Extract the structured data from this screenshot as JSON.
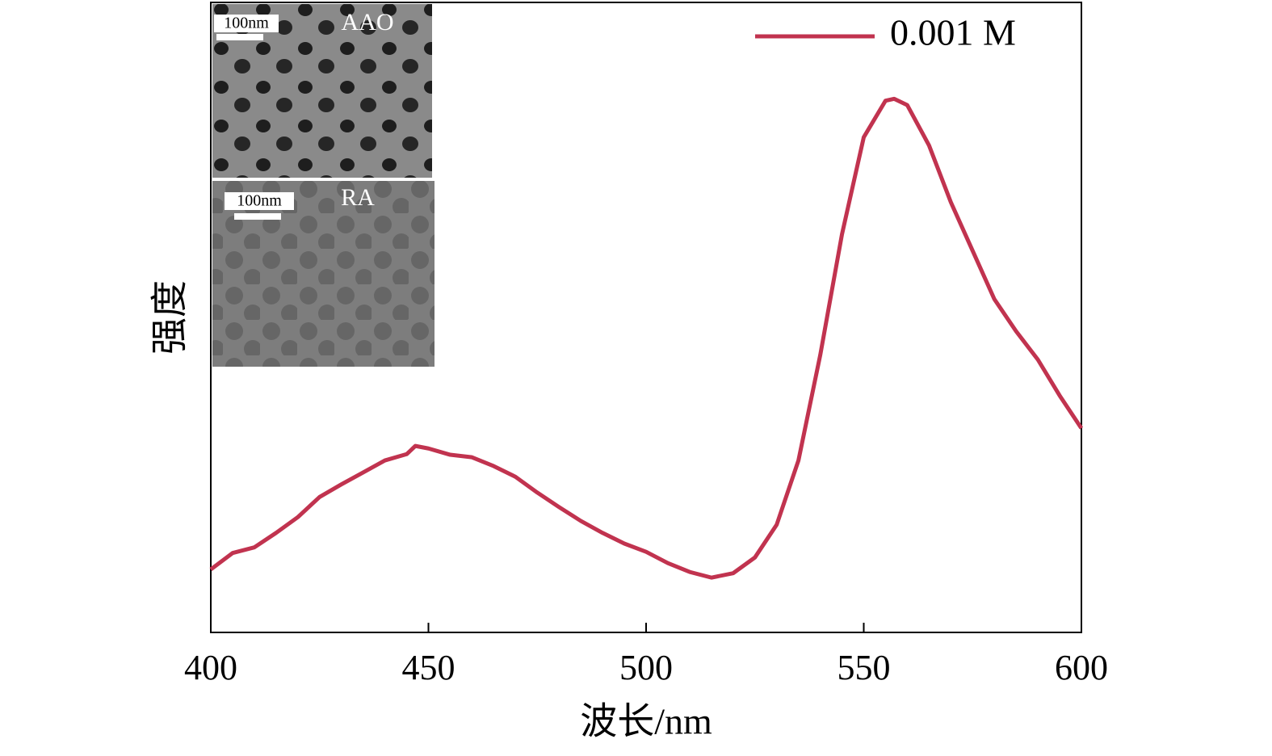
{
  "chart_data": {
    "type": "line",
    "x_label": "波长/nm",
    "y_label": "强度",
    "xlim": [
      400,
      600
    ],
    "xticks": [
      400,
      450,
      500,
      550,
      600
    ],
    "ylim": [
      0,
      100
    ],
    "legend": "upper right",
    "x": [
      400,
      405,
      410,
      415,
      420,
      425,
      430,
      435,
      440,
      445,
      447,
      450,
      455,
      460,
      465,
      470,
      475,
      480,
      485,
      490,
      495,
      500,
      505,
      510,
      515,
      520,
      525,
      530,
      535,
      540,
      545,
      550,
      555,
      557,
      560,
      565,
      570,
      575,
      580,
      585,
      590,
      595,
      600
    ],
    "series": [
      {
        "name": "0.001 M",
        "color": "#c1334f",
        "values": [
          10.0,
          12.6,
          13.5,
          15.8,
          18.3,
          21.5,
          23.5,
          25.4,
          27.3,
          28.3,
          29.6,
          29.2,
          28.2,
          27.8,
          26.4,
          24.7,
          22.2,
          19.9,
          17.7,
          15.8,
          14.1,
          12.8,
          11.0,
          9.6,
          8.7,
          9.4,
          11.9,
          17.1,
          27.3,
          44.0,
          63.2,
          78.6,
          84.4,
          84.7,
          83.7,
          77.3,
          68.3,
          60.6,
          52.9,
          47.8,
          43.3,
          37.6,
          32.4
        ]
      }
    ],
    "insets": [
      {
        "label": "AAO",
        "scale_bar": "100nm"
      },
      {
        "label": "RA",
        "scale_bar": "100nm"
      }
    ]
  }
}
